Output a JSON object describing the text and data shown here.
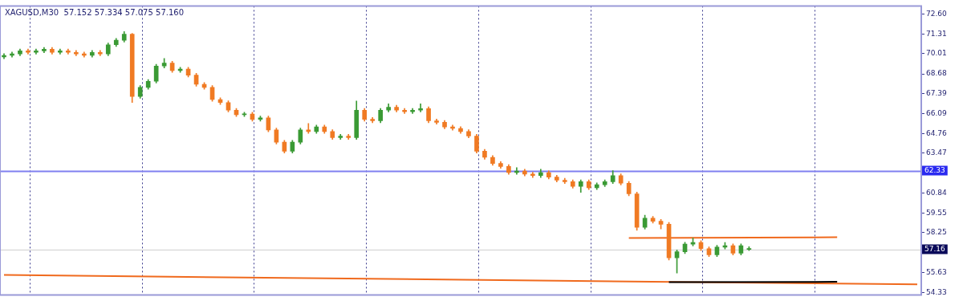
{
  "chart_data": {
    "type": "candlestick",
    "title": "XAGUSD,M30  57.152 57.334 57.075 57.160",
    "categories": [
      null,
      null,
      null,
      null,
      null,
      null,
      null,
      null,
      null,
      null,
      null,
      null,
      null,
      null,
      null,
      null,
      null,
      null,
      null,
      null,
      null,
      null,
      null,
      null,
      null,
      null,
      null,
      null,
      null,
      null,
      null,
      null,
      null,
      null,
      null,
      null,
      null,
      null,
      null,
      null,
      null,
      null,
      null,
      null,
      null,
      null,
      null,
      null,
      null,
      null,
      null,
      null,
      null,
      null,
      null,
      null,
      null,
      null,
      null,
      null,
      null,
      null,
      null,
      null,
      null,
      null,
      null,
      null,
      null,
      null,
      null,
      null,
      null,
      null,
      null,
      null,
      null,
      null,
      null,
      null,
      null,
      null,
      null,
      null,
      null,
      null,
      null,
      null,
      null,
      null,
      null,
      null,
      null,
      null,
      null,
      null,
      null,
      null,
      null,
      null,
      null,
      null,
      null,
      null,
      null,
      null,
      null,
      null,
      null,
      null,
      null,
      null,
      null,
      null,
      null
    ],
    "ohlc": [
      [
        69.8,
        70.02,
        69.68,
        69.9
      ],
      [
        69.9,
        70.12,
        69.78,
        70.0
      ],
      [
        70.0,
        70.32,
        69.88,
        70.2
      ],
      [
        70.2,
        70.32,
        69.98,
        70.1
      ],
      [
        70.1,
        70.32,
        69.98,
        70.2
      ],
      [
        70.2,
        70.42,
        70.08,
        70.3
      ],
      [
        70.3,
        70.42,
        69.98,
        70.1
      ],
      [
        70.1,
        70.32,
        69.98,
        70.2
      ],
      [
        70.2,
        70.32,
        69.98,
        70.1
      ],
      [
        70.1,
        70.22,
        69.88,
        70.0
      ],
      [
        70.0,
        70.12,
        69.78,
        69.9
      ],
      [
        69.9,
        70.22,
        69.78,
        70.1
      ],
      [
        70.1,
        70.22,
        69.88,
        70.0
      ],
      [
        70.0,
        70.72,
        69.88,
        70.6
      ],
      [
        70.6,
        71.02,
        70.48,
        70.9
      ],
      [
        70.9,
        71.46,
        70.78,
        71.3
      ],
      [
        71.3,
        71.35,
        66.8,
        67.2
      ],
      [
        67.2,
        67.92,
        67.08,
        67.8
      ],
      [
        67.8,
        68.32,
        67.68,
        68.2
      ],
      [
        68.2,
        69.32,
        68.08,
        69.2
      ],
      [
        69.2,
        69.7,
        69.08,
        69.4
      ],
      [
        69.4,
        69.52,
        68.78,
        68.9
      ],
      [
        68.9,
        69.12,
        68.78,
        69.0
      ],
      [
        69.0,
        69.12,
        68.48,
        68.6
      ],
      [
        68.6,
        68.72,
        67.88,
        68.0
      ],
      [
        68.0,
        68.12,
        67.68,
        67.8
      ],
      [
        67.8,
        67.92,
        66.88,
        67.0
      ],
      [
        67.0,
        67.12,
        66.68,
        66.8
      ],
      [
        66.8,
        66.92,
        66.18,
        66.3
      ],
      [
        66.3,
        66.42,
        65.88,
        66.0
      ],
      [
        66.0,
        66.17,
        65.88,
        66.05
      ],
      [
        66.05,
        66.17,
        65.58,
        65.7
      ],
      [
        65.7,
        65.92,
        65.58,
        65.8
      ],
      [
        65.8,
        65.92,
        64.88,
        65.0
      ],
      [
        65.0,
        65.12,
        64.08,
        64.2
      ],
      [
        64.2,
        64.32,
        63.48,
        63.6
      ],
      [
        63.6,
        64.32,
        63.48,
        64.2
      ],
      [
        64.2,
        65.12,
        64.08,
        65.0
      ],
      [
        65.0,
        65.42,
        64.78,
        64.9
      ],
      [
        64.9,
        65.32,
        64.78,
        65.2
      ],
      [
        65.2,
        65.32,
        64.78,
        64.9
      ],
      [
        64.9,
        65.02,
        64.38,
        64.5
      ],
      [
        64.5,
        64.72,
        64.38,
        64.6
      ],
      [
        64.6,
        64.72,
        64.38,
        64.5
      ],
      [
        64.5,
        66.9,
        64.38,
        66.3
      ],
      [
        66.3,
        66.42,
        65.58,
        65.7
      ],
      [
        65.7,
        65.82,
        65.48,
        65.6
      ],
      [
        65.6,
        66.42,
        65.48,
        66.3
      ],
      [
        66.3,
        66.72,
        66.18,
        66.5
      ],
      [
        66.5,
        66.62,
        66.18,
        66.3
      ],
      [
        66.3,
        66.42,
        66.08,
        66.2
      ],
      [
        66.2,
        66.42,
        66.08,
        66.3
      ],
      [
        66.3,
        66.72,
        66.18,
        66.4
      ],
      [
        66.4,
        66.52,
        65.48,
        65.6
      ],
      [
        65.6,
        65.72,
        65.38,
        65.5
      ],
      [
        65.5,
        65.62,
        65.08,
        65.2
      ],
      [
        65.2,
        65.32,
        64.98,
        65.1
      ],
      [
        65.1,
        65.22,
        64.78,
        64.9
      ],
      [
        64.9,
        65.02,
        64.48,
        64.6
      ],
      [
        64.6,
        64.72,
        63.48,
        63.6
      ],
      [
        63.6,
        63.72,
        63.08,
        63.2
      ],
      [
        63.2,
        63.32,
        62.68,
        62.8
      ],
      [
        62.8,
        62.92,
        62.48,
        62.6
      ],
      [
        62.6,
        62.72,
        62.08,
        62.2
      ],
      [
        62.2,
        62.52,
        62.08,
        62.3
      ],
      [
        62.3,
        62.42,
        61.98,
        62.1
      ],
      [
        62.1,
        62.22,
        61.88,
        62.0
      ],
      [
        62.0,
        62.42,
        61.88,
        62.2
      ],
      [
        62.2,
        62.32,
        61.78,
        61.9
      ],
      [
        61.9,
        62.02,
        61.58,
        61.7
      ],
      [
        61.7,
        61.82,
        61.48,
        61.6
      ],
      [
        61.6,
        61.72,
        61.18,
        61.3
      ],
      [
        61.3,
        61.72,
        60.9,
        61.6
      ],
      [
        61.6,
        61.72,
        61.08,
        61.2
      ],
      [
        61.2,
        61.52,
        61.08,
        61.4
      ],
      [
        61.4,
        61.72,
        61.28,
        61.6
      ],
      [
        61.6,
        62.33,
        61.48,
        62.0
      ],
      [
        62.0,
        62.12,
        61.38,
        61.5
      ],
      [
        61.5,
        61.62,
        60.68,
        60.8
      ],
      [
        60.8,
        60.92,
        58.4,
        58.6
      ],
      [
        58.6,
        59.4,
        58.48,
        59.2
      ],
      [
        59.2,
        59.32,
        58.88,
        59.0
      ],
      [
        59.0,
        59.12,
        58.5,
        58.8
      ],
      [
        58.8,
        58.92,
        56.45,
        56.6
      ],
      [
        56.6,
        57.12,
        55.6,
        57.0
      ],
      [
        57.0,
        57.62,
        56.88,
        57.5
      ],
      [
        57.5,
        57.9,
        57.38,
        57.6
      ],
      [
        57.6,
        57.72,
        57.08,
        57.2
      ],
      [
        57.2,
        57.32,
        56.68,
        56.8
      ],
      [
        56.8,
        57.42,
        56.68,
        57.3
      ],
      [
        57.3,
        57.6,
        57.18,
        57.4
      ],
      [
        57.4,
        57.52,
        56.78,
        56.9
      ],
      [
        56.9,
        57.52,
        56.78,
        57.4
      ],
      [
        57.152,
        57.334,
        57.075,
        57.16
      ],
      null,
      null,
      null,
      null,
      null,
      null,
      null,
      null,
      null,
      null,
      null,
      null,
      null,
      null,
      null,
      null,
      null,
      null,
      null,
      null,
      null
    ],
    "colors": [
      "#3a9a34",
      "#3a9a34",
      "#3a9a34",
      "#f07a23",
      "#3a9a34",
      "#3a9a34",
      "#f07a23",
      "#3a9a34",
      "#f07a23",
      "#f07a23",
      "#f07a23",
      "#3a9a34",
      "#f07a23",
      "#3a9a34",
      "#3a9a34",
      "#3a9a34",
      "#f07a23",
      "#3a9a34",
      "#3a9a34",
      "#3a9a34",
      "#3a9a34",
      "#f07a23",
      "#3a9a34",
      "#f07a23",
      "#f07a23",
      "#f07a23",
      "#f07a23",
      "#f07a23",
      "#f07a23",
      "#f07a23",
      "#3a9a34",
      "#f07a23",
      "#3a9a34",
      "#f07a23",
      "#f07a23",
      "#f07a23",
      "#3a9a34",
      "#3a9a34",
      "#f07a23",
      "#3a9a34",
      "#f07a23",
      "#f07a23",
      "#3a9a34",
      "#f07a23",
      "#3a9a34",
      "#f07a23",
      "#f07a23",
      "#3a9a34",
      "#3a9a34",
      "#f07a23",
      "#f07a23",
      "#3a9a34",
      "#3a9a34",
      "#f07a23",
      "#f07a23",
      "#f07a23",
      "#f07a23",
      "#f07a23",
      "#f07a23",
      "#f07a23",
      "#f07a23",
      "#f07a23",
      "#f07a23",
      "#f07a23",
      "#3a9a34",
      "#f07a23",
      "#f07a23",
      "#3a9a34",
      "#f07a23",
      "#f07a23",
      "#f07a23",
      "#f07a23",
      "#3a9a34",
      "#f07a23",
      "#3a9a34",
      "#3a9a34",
      "#3a9a34",
      "#f07a23",
      "#f07a23",
      "#f07a23",
      "#3a9a34",
      "#f07a23",
      "#f07a23",
      "#f07a23",
      "#3a9a34",
      "#3a9a34",
      "#3a9a34",
      "#f07a23",
      "#f07a23",
      "#3a9a34",
      "#3a9a34",
      "#f07a23",
      "#3a9a34",
      "#3a9a34",
      null,
      null,
      null,
      null,
      null,
      null,
      null,
      null,
      null,
      null,
      null,
      null,
      null,
      null,
      null,
      null,
      null,
      null,
      null,
      null,
      null
    ],
    "series": [
      {
        "type": "line",
        "values": [
          null,
          null,
          null,
          null,
          null,
          null,
          null,
          null,
          null,
          null,
          null,
          null,
          null,
          null,
          null,
          null,
          null,
          null,
          null,
          null,
          null,
          null,
          null,
          null,
          null,
          null,
          null,
          null,
          null,
          null,
          null,
          null,
          null,
          null,
          null,
          null,
          null,
          null,
          null,
          null,
          null,
          null,
          null,
          null,
          null,
          null,
          null,
          null,
          null,
          null,
          null,
          null,
          null,
          null,
          null,
          null,
          null,
          null,
          null,
          null,
          null,
          null,
          null,
          null,
          null,
          null,
          null,
          null,
          null,
          null,
          null,
          null,
          null,
          null,
          null,
          null,
          null,
          null,
          57.9,
          null,
          null,
          null,
          null,
          null,
          null,
          null,
          null,
          null,
          null,
          null,
          null,
          null,
          null,
          null,
          null,
          null,
          null,
          null,
          null,
          null,
          null,
          null,
          null,
          null,
          57.95,
          null,
          null,
          null,
          null,
          null,
          null,
          null,
          null,
          null,
          null
        ],
        "color": "#f06a1e"
      },
      {
        "type": "line",
        "values": [
          null,
          null,
          null,
          null,
          null,
          null,
          null,
          null,
          null,
          null,
          null,
          null,
          null,
          null,
          null,
          null,
          null,
          null,
          null,
          null,
          null,
          null,
          null,
          null,
          null,
          null,
          null,
          null,
          null,
          null,
          null,
          null,
          null,
          null,
          null,
          null,
          null,
          null,
          null,
          null,
          null,
          null,
          null,
          null,
          null,
          null,
          null,
          null,
          null,
          null,
          null,
          null,
          null,
          null,
          null,
          null,
          null,
          null,
          null,
          null,
          null,
          null,
          null,
          null,
          null,
          null,
          null,
          null,
          null,
          null,
          null,
          null,
          null,
          null,
          null,
          null,
          null,
          null,
          null,
          null,
          null,
          null,
          null,
          55.0,
          null,
          null,
          null,
          null,
          null,
          null,
          null,
          null,
          null,
          null,
          null,
          null,
          null,
          null,
          null,
          null,
          null,
          null,
          null,
          null,
          55.02,
          null,
          null,
          null,
          null,
          null,
          null,
          null,
          null,
          null,
          null
        ],
        "color": "#000000"
      },
      {
        "type": "line",
        "values": [
          55.47,
          null,
          null,
          null,
          null,
          null,
          null,
          null,
          null,
          null,
          null,
          null,
          null,
          null,
          null,
          null,
          null,
          null,
          null,
          null,
          null,
          null,
          null,
          null,
          null,
          null,
          null,
          null,
          null,
          null,
          null,
          null,
          null,
          null,
          null,
          null,
          null,
          null,
          null,
          null,
          null,
          null,
          null,
          null,
          null,
          null,
          null,
          null,
          null,
          null,
          null,
          null,
          null,
          null,
          null,
          null,
          null,
          null,
          null,
          null,
          null,
          null,
          null,
          null,
          null,
          null,
          null,
          null,
          null,
          null,
          null,
          null,
          null,
          null,
          null,
          null,
          null,
          null,
          null,
          null,
          null,
          null,
          null,
          null,
          null,
          null,
          null,
          null,
          null,
          null,
          null,
          null,
          null,
          null,
          null,
          null,
          null,
          null,
          null,
          null,
          null,
          null,
          null,
          null,
          null,
          null,
          null,
          null,
          null,
          null,
          null,
          null,
          null,
          null,
          54.85
        ],
        "color": "#f06a1e"
      }
    ],
    "ylim": [
      54.15,
      73.15
    ],
    "yticks": [
      {
        "value": 72.6,
        "label": "72.60"
      },
      {
        "value": 71.31,
        "label": "71.31"
      },
      {
        "value": 70.01,
        "label": "70.01"
      },
      {
        "value": 68.68,
        "label": "68.68"
      },
      {
        "value": 67.39,
        "label": "67.39"
      },
      {
        "value": 66.09,
        "label": "66.09"
      },
      {
        "value": 64.76,
        "label": "64.76"
      },
      {
        "value": 63.47,
        "label": "63.47"
      },
      {
        "value": 60.84,
        "label": "60.84"
      },
      {
        "value": 59.55,
        "label": "59.55"
      },
      {
        "value": 58.25,
        "label": "58.25"
      },
      {
        "value": 55.63,
        "label": "55.63"
      },
      {
        "value": 54.33,
        "label": "54.33"
      }
    ],
    "tick_labels": "y",
    "ref_lines": [
      {
        "axis": "y",
        "value": 62.33,
        "label": "62.33",
        "color": "#8080f0"
      },
      {
        "axis": "y",
        "value": 57.16,
        "label": "57.16",
        "color": "#d0d0d0"
      }
    ]
  }
}
